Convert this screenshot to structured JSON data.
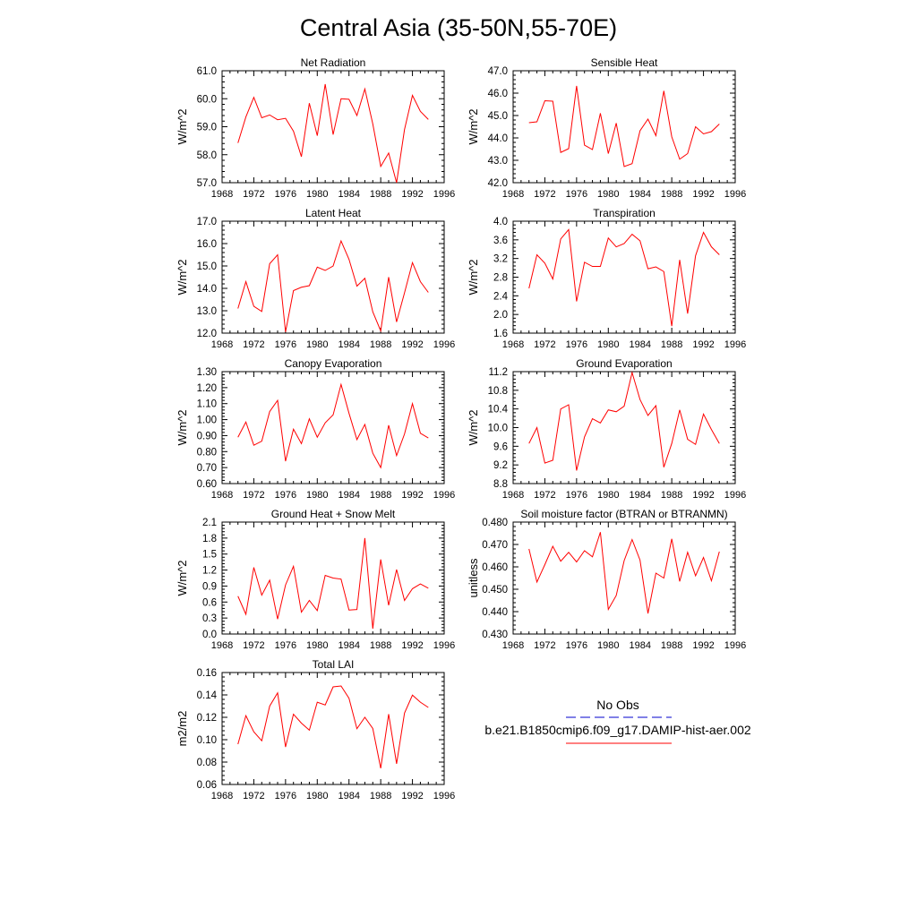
{
  "figure": {
    "title": "Central Asia (35-50N,55-70E)"
  },
  "colors": {
    "model": "#ff0000",
    "obs": "#0000cc"
  },
  "legend": {
    "obs_label": "No Obs",
    "model_label": "b.e21.B1850cmip6.f09_g17.DAMIP-hist-aer.002"
  },
  "chart_data": [
    {
      "type": "line",
      "title": "Net Radiation",
      "ylabel": "W/m^2",
      "xlim": [
        1968,
        1996
      ],
      "ylim": [
        57.0,
        61.0
      ],
      "xticks": [
        1968,
        1972,
        1976,
        1980,
        1984,
        1988,
        1992,
        1996
      ],
      "yticks": [
        "57.0",
        "58.0",
        "59.0",
        "60.0",
        "61.0"
      ],
      "ytick_values": [
        57.0,
        58.0,
        59.0,
        60.0,
        61.0
      ],
      "series": [
        {
          "x": [
            1970,
            1971,
            1972,
            1973,
            1974,
            1975,
            1976,
            1977,
            1978,
            1979,
            1980,
            1981,
            1982,
            1983,
            1984,
            1985,
            1986,
            1987,
            1988,
            1989,
            1990,
            1991,
            1992,
            1993,
            1994
          ],
          "values": [
            58.42,
            59.35,
            60.05,
            59.32,
            59.42,
            59.25,
            59.3,
            58.84,
            57.93,
            59.84,
            58.68,
            60.52,
            58.72,
            60.0,
            59.98,
            59.4,
            60.35,
            59.1,
            57.58,
            58.06,
            57.0,
            58.9,
            60.12,
            59.55,
            59.26
          ]
        }
      ]
    },
    {
      "type": "line",
      "title": "Sensible Heat",
      "ylabel": "W/m^2",
      "xlim": [
        1968,
        1996
      ],
      "ylim": [
        42.0,
        47.0
      ],
      "xticks": [
        1968,
        1972,
        1976,
        1980,
        1984,
        1988,
        1992,
        1996
      ],
      "yticks": [
        "42.0",
        "43.0",
        "44.0",
        "45.0",
        "46.0",
        "47.0"
      ],
      "ytick_values": [
        42.0,
        43.0,
        44.0,
        45.0,
        46.0,
        47.0
      ],
      "series": [
        {
          "x": [
            1970,
            1971,
            1972,
            1973,
            1974,
            1975,
            1976,
            1977,
            1978,
            1979,
            1980,
            1981,
            1982,
            1983,
            1984,
            1985,
            1986,
            1987,
            1988,
            1989,
            1990,
            1991,
            1992,
            1993,
            1994
          ],
          "values": [
            44.68,
            44.72,
            45.66,
            45.64,
            43.35,
            43.52,
            46.32,
            43.68,
            43.48,
            45.1,
            43.3,
            44.66,
            42.72,
            42.85,
            44.32,
            44.84,
            44.1,
            46.1,
            44.05,
            43.05,
            43.3,
            44.5,
            44.18,
            44.28,
            44.62
          ]
        }
      ]
    },
    {
      "type": "line",
      "title": "Latent Heat",
      "ylabel": "W/m^2",
      "xlim": [
        1968,
        1996
      ],
      "ylim": [
        12.0,
        17.0
      ],
      "xticks": [
        1968,
        1972,
        1976,
        1980,
        1984,
        1988,
        1992,
        1996
      ],
      "yticks": [
        "12.0",
        "13.0",
        "14.0",
        "15.0",
        "16.0",
        "17.0"
      ],
      "ytick_values": [
        12.0,
        13.0,
        14.0,
        15.0,
        16.0,
        17.0
      ],
      "series": [
        {
          "x": [
            1970,
            1971,
            1972,
            1973,
            1974,
            1975,
            1976,
            1977,
            1978,
            1979,
            1980,
            1981,
            1982,
            1983,
            1984,
            1985,
            1986,
            1987,
            1988,
            1989,
            1990,
            1991,
            1992,
            1993,
            1994
          ],
          "values": [
            13.1,
            14.3,
            13.2,
            12.97,
            15.1,
            15.5,
            12.05,
            13.9,
            14.05,
            14.12,
            14.95,
            14.8,
            15.0,
            16.12,
            15.3,
            14.1,
            14.45,
            12.95,
            12.1,
            14.5,
            12.5,
            13.8,
            15.15,
            14.3,
            13.82
          ]
        }
      ]
    },
    {
      "type": "line",
      "title": "Transpiration",
      "ylabel": "W/m^2",
      "xlim": [
        1968,
        1996
      ],
      "ylim": [
        1.6,
        4.0
      ],
      "xticks": [
        1968,
        1972,
        1976,
        1980,
        1984,
        1988,
        1992,
        1996
      ],
      "yticks": [
        "1.6",
        "2.0",
        "2.4",
        "2.8",
        "3.2",
        "3.6",
        "4.0"
      ],
      "ytick_values": [
        1.6,
        2.0,
        2.4,
        2.8,
        3.2,
        3.6,
        4.0
      ],
      "series": [
        {
          "x": [
            1970,
            1971,
            1972,
            1973,
            1974,
            1975,
            1976,
            1977,
            1978,
            1979,
            1980,
            1981,
            1982,
            1983,
            1984,
            1985,
            1986,
            1987,
            1988,
            1989,
            1990,
            1991,
            1992,
            1993,
            1994
          ],
          "values": [
            2.56,
            3.28,
            3.1,
            2.76,
            3.62,
            3.82,
            2.28,
            3.12,
            3.03,
            3.03,
            3.64,
            3.45,
            3.52,
            3.72,
            3.58,
            2.98,
            3.02,
            2.92,
            1.75,
            3.17,
            2.02,
            3.26,
            3.76,
            3.45,
            3.28
          ]
        }
      ]
    },
    {
      "type": "line",
      "title": "Canopy Evaporation",
      "ylabel": "W/m^2",
      "xlim": [
        1968,
        1996
      ],
      "ylim": [
        0.6,
        1.3
      ],
      "xticks": [
        1968,
        1972,
        1976,
        1980,
        1984,
        1988,
        1992,
        1996
      ],
      "yticks": [
        "0.60",
        "0.70",
        "0.80",
        "0.90",
        "1.00",
        "1.10",
        "1.20",
        "1.30"
      ],
      "ytick_values": [
        0.6,
        0.7,
        0.8,
        0.9,
        1.0,
        1.1,
        1.2,
        1.3
      ],
      "series": [
        {
          "x": [
            1970,
            1971,
            1972,
            1973,
            1974,
            1975,
            1976,
            1977,
            1978,
            1979,
            1980,
            1981,
            1982,
            1983,
            1984,
            1985,
            1986,
            1987,
            1988,
            1989,
            1990,
            1991,
            1992,
            1993,
            1994
          ],
          "values": [
            0.89,
            0.985,
            0.84,
            0.865,
            1.05,
            1.12,
            0.74,
            0.94,
            0.85,
            1.005,
            0.89,
            0.98,
            1.03,
            1.22,
            1.04,
            0.875,
            0.97,
            0.79,
            0.7,
            0.965,
            0.775,
            0.91,
            1.1,
            0.915,
            0.885
          ]
        }
      ]
    },
    {
      "type": "line",
      "title": "Ground Evaporation",
      "ylabel": "W/m^2",
      "xlim": [
        1968,
        1996
      ],
      "ylim": [
        8.8,
        11.2
      ],
      "xticks": [
        1968,
        1972,
        1976,
        1980,
        1984,
        1988,
        1992,
        1996
      ],
      "yticks": [
        "8.8",
        "9.2",
        "9.6",
        "10.0",
        "10.4",
        "10.8",
        "11.2"
      ],
      "ytick_values": [
        8.8,
        9.2,
        9.6,
        10.0,
        10.4,
        10.8,
        11.2
      ],
      "series": [
        {
          "x": [
            1970,
            1971,
            1972,
            1973,
            1974,
            1975,
            1976,
            1977,
            1978,
            1979,
            1980,
            1981,
            1982,
            1983,
            1984,
            1985,
            1986,
            1987,
            1988,
            1989,
            1990,
            1991,
            1992,
            1993,
            1994
          ],
          "values": [
            9.66,
            10.0,
            9.24,
            9.3,
            10.4,
            10.49,
            9.08,
            9.8,
            10.19,
            10.1,
            10.38,
            10.34,
            10.46,
            11.18,
            10.6,
            10.26,
            10.47,
            9.15,
            9.66,
            10.38,
            9.75,
            9.64,
            10.29,
            9.96,
            9.66
          ]
        }
      ]
    },
    {
      "type": "line",
      "title": "Ground Heat + Snow Melt",
      "ylabel": "W/m^2",
      "xlim": [
        1968,
        1996
      ],
      "ylim": [
        0.0,
        2.1
      ],
      "xticks": [
        1968,
        1972,
        1976,
        1980,
        1984,
        1988,
        1992,
        1996
      ],
      "yticks": [
        "0.0",
        "0.3",
        "0.6",
        "0.9",
        "1.2",
        "1.5",
        "1.8",
        "2.1"
      ],
      "ytick_values": [
        0.0,
        0.3,
        0.6,
        0.9,
        1.2,
        1.5,
        1.8,
        2.1
      ],
      "series": [
        {
          "x": [
            1970,
            1971,
            1972,
            1973,
            1974,
            1975,
            1976,
            1977,
            1978,
            1979,
            1980,
            1981,
            1982,
            1983,
            1984,
            1985,
            1986,
            1987,
            1988,
            1989,
            1990,
            1991,
            1992,
            1993,
            1994
          ],
          "values": [
            0.71,
            0.37,
            1.25,
            0.73,
            1.01,
            0.28,
            0.92,
            1.27,
            0.41,
            0.63,
            0.44,
            1.1,
            1.05,
            1.03,
            0.45,
            0.46,
            1.8,
            0.1,
            1.4,
            0.54,
            1.21,
            0.63,
            0.85,
            0.94,
            0.86
          ]
        }
      ]
    },
    {
      "type": "line",
      "title": "Soil moisture factor (BTRAN or BTRANMN)",
      "ylabel": "unitless",
      "xlim": [
        1968,
        1996
      ],
      "ylim": [
        0.43,
        0.48
      ],
      "xticks": [
        1968,
        1972,
        1976,
        1980,
        1984,
        1988,
        1992,
        1996
      ],
      "yticks": [
        "0.430",
        "0.440",
        "0.450",
        "0.460",
        "0.470",
        "0.480"
      ],
      "ytick_values": [
        0.43,
        0.44,
        0.45,
        0.46,
        0.47,
        0.48
      ],
      "series": [
        {
          "x": [
            1970,
            1971,
            1972,
            1973,
            1974,
            1975,
            1976,
            1977,
            1978,
            1979,
            1980,
            1981,
            1982,
            1983,
            1984,
            1985,
            1986,
            1987,
            1988,
            1989,
            1990,
            1991,
            1992,
            1993,
            1994
          ],
          "values": [
            0.468,
            0.4532,
            0.461,
            0.4692,
            0.4625,
            0.4665,
            0.4622,
            0.4672,
            0.4645,
            0.4755,
            0.441,
            0.4472,
            0.4628,
            0.4722,
            0.463,
            0.4392,
            0.4572,
            0.455,
            0.4725,
            0.4535,
            0.4665,
            0.456,
            0.4642,
            0.4538,
            0.4668
          ]
        }
      ]
    },
    {
      "type": "line",
      "title": "Total LAI",
      "ylabel": "m2/m2",
      "xlim": [
        1968,
        1996
      ],
      "ylim": [
        0.06,
        0.16
      ],
      "xticks": [
        1968,
        1972,
        1976,
        1980,
        1984,
        1988,
        1992,
        1996
      ],
      "yticks": [
        "0.06",
        "0.08",
        "0.10",
        "0.12",
        "0.14",
        "0.16"
      ],
      "ytick_values": [
        0.06,
        0.08,
        0.1,
        0.12,
        0.14,
        0.16
      ],
      "series": [
        {
          "x": [
            1970,
            1971,
            1972,
            1973,
            1974,
            1975,
            1976,
            1977,
            1978,
            1979,
            1980,
            1981,
            1982,
            1983,
            1984,
            1985,
            1986,
            1987,
            1988,
            1989,
            1990,
            1991,
            1992,
            1993,
            1994
          ],
          "values": [
            0.096,
            0.1215,
            0.107,
            0.099,
            0.13,
            0.1418,
            0.0935,
            0.1228,
            0.1148,
            0.1085,
            0.1335,
            0.131,
            0.1472,
            0.148,
            0.137,
            0.1098,
            0.12,
            0.11,
            0.0745,
            0.1228,
            0.0785,
            0.1238,
            0.1398,
            0.1335,
            0.1288
          ]
        }
      ]
    }
  ]
}
